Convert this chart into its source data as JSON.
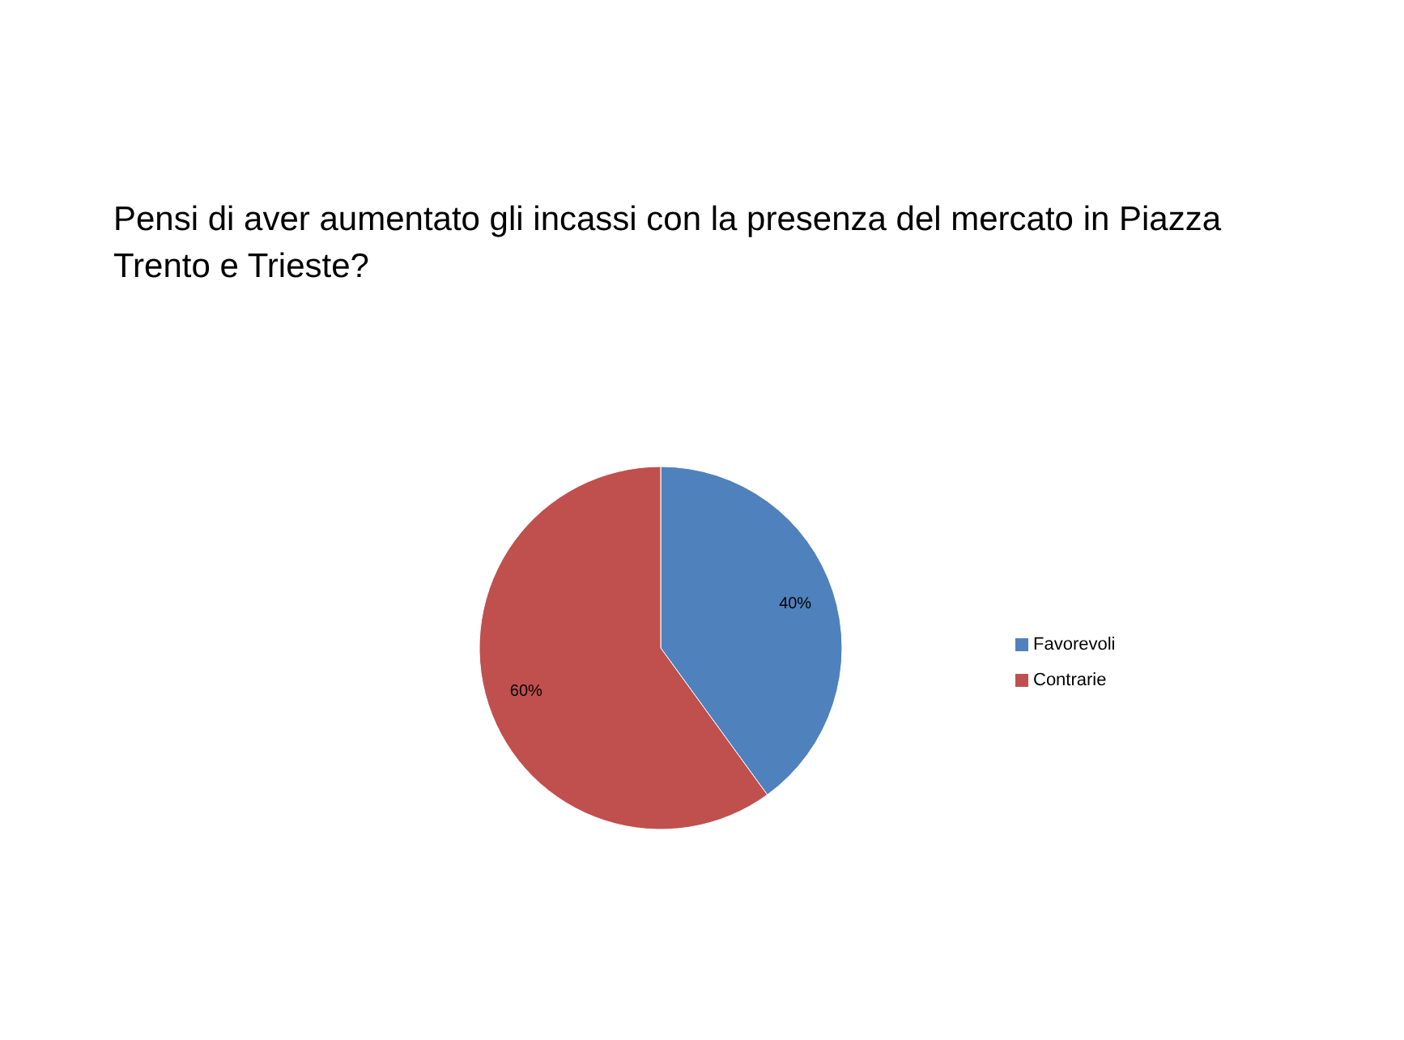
{
  "chart_data": {
    "type": "pie",
    "title": "Pensi di aver aumentato gli incassi con la presenza del mercato in Piazza Trento e Trieste?",
    "categories": [
      "Favorevoli",
      "Contrarie"
    ],
    "values": [
      40,
      60
    ],
    "value_labels": [
      "40%",
      "60%"
    ],
    "colors": [
      "#4f81bd",
      "#c0504d"
    ],
    "legend": "right"
  }
}
